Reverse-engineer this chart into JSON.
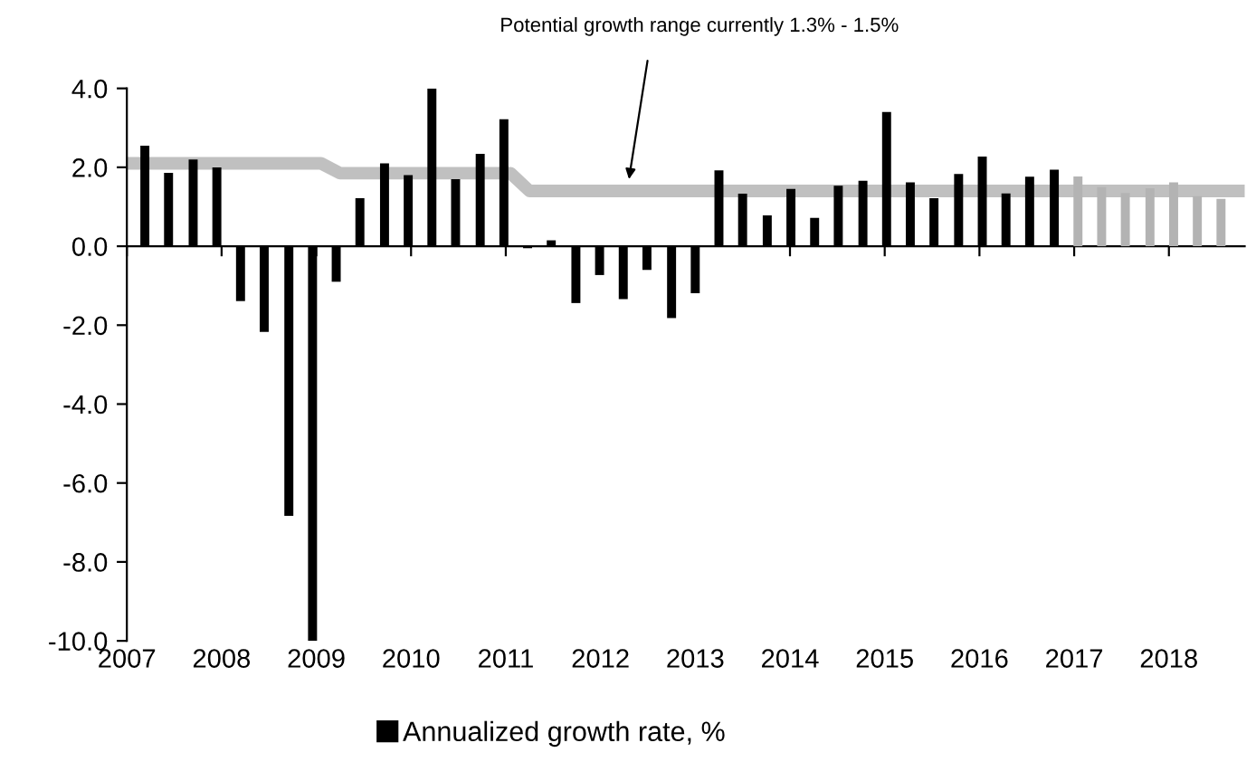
{
  "chart_data": {
    "type": "bar",
    "x": [
      2007.19,
      2007.44,
      2007.7,
      2007.95,
      2008.2,
      2008.45,
      2008.71,
      2008.96,
      2009.21,
      2009.46,
      2009.72,
      2009.97,
      2010.22,
      2010.47,
      2010.73,
      2010.98,
      2011.23,
      2011.48,
      2011.74,
      2011.99,
      2012.24,
      2012.49,
      2012.75,
      2013.0,
      2013.25,
      2013.5,
      2013.76,
      2014.01,
      2014.26,
      2014.51,
      2014.77,
      2015.02,
      2015.27,
      2015.52,
      2015.78,
      2016.03,
      2016.28,
      2016.53,
      2016.79,
      2017.04,
      2017.29,
      2017.54,
      2017.8,
      2018.05,
      2018.3,
      2018.55
    ],
    "series": [
      {
        "name": "Annualized growth rate, %",
        "color": "#000000",
        "values": [
          2.55,
          1.86,
          2.2,
          2.0,
          -1.39,
          -2.17,
          -6.83,
          -10.0,
          -0.9,
          1.22,
          2.1,
          1.8,
          4.0,
          1.7,
          2.34,
          3.22,
          -0.05,
          0.15,
          -1.44,
          -0.73,
          -1.34,
          -0.6,
          -1.82,
          -1.19,
          1.92,
          1.33,
          0.78,
          1.45,
          0.72,
          1.53,
          1.66,
          3.4,
          1.62,
          1.22,
          1.83,
          2.27,
          1.34,
          1.76,
          1.94,
          1.77,
          1.5,
          1.35,
          1.47,
          1.62,
          1.27,
          1.2
        ],
        "colors": [
          "#000000",
          "#000000",
          "#000000",
          "#000000",
          "#000000",
          "#000000",
          "#000000",
          "#000000",
          "#000000",
          "#000000",
          "#000000",
          "#000000",
          "#000000",
          "#000000",
          "#000000",
          "#000000",
          "#000000",
          "#000000",
          "#000000",
          "#000000",
          "#000000",
          "#000000",
          "#000000",
          "#000000",
          "#000000",
          "#000000",
          "#000000",
          "#000000",
          "#000000",
          "#000000",
          "#000000",
          "#000000",
          "#000000",
          "#000000",
          "#000000",
          "#000000",
          "#000000",
          "#000000",
          "#000000",
          "#b3b3b3",
          "#b3b3b3",
          "#b3b3b3",
          "#b3b3b3",
          "#b3b3b3",
          "#b3b3b3",
          "#b3b3b3"
        ]
      },
      {
        "type": "line",
        "color": "#c0c0c0",
        "x": [
          2007.0,
          2009.05,
          2009.25,
          2011.05,
          2011.25,
          2018.8
        ],
        "values": [
          2.1,
          2.1,
          1.85,
          1.85,
          1.4,
          1.4
        ]
      }
    ],
    "xlim": [
      2007,
      2018.8
    ],
    "xticks": [
      2007,
      2008,
      2009,
      2010,
      2011,
      2012,
      2013,
      2014,
      2015,
      2016,
      2017,
      2018
    ],
    "ylim": [
      -10,
      4
    ],
    "yticks": [
      {
        "value": -10,
        "label": "-10.0"
      },
      {
        "value": -8,
        "label": "-8.0"
      },
      {
        "value": -6,
        "label": "-6.0"
      },
      {
        "value": -4,
        "label": "-4.0"
      },
      {
        "value": -2,
        "label": "-2.0"
      },
      {
        "value": 0,
        "label": "0.0"
      },
      {
        "value": 2,
        "label": "2.0"
      },
      {
        "value": 4,
        "label": "4.0"
      }
    ],
    "annotations": [
      {
        "text": "Potential growth range currently 1.3% - 1.5%",
        "x": 2012.3,
        "y": 1.7
      }
    ],
    "legend": "bottom"
  }
}
